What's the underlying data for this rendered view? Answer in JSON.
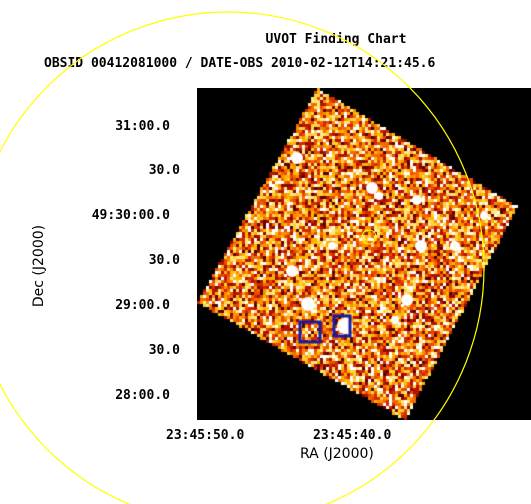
{
  "chart": {
    "title": "UVOT Finding Chart",
    "subtitle": "OBSID 00412081000 / DATE-OBS 2010-02-12T14:21:45.6",
    "xlabel": "RA (J2000)",
    "ylabel": "Dec (J2000)",
    "dec_ticks": [
      "31:00.0",
      "30.0",
      "49:30:00.0",
      "30.0",
      "29:00.0",
      "30.0",
      "28:00.0"
    ],
    "ra_ticks": [
      "23:45:50.0",
      "23:45:40.0"
    ]
  },
  "colors": {
    "background": "#ffffff",
    "frame": "#000000",
    "circle": "#ffff00",
    "marker": "#1a1aa0"
  }
}
